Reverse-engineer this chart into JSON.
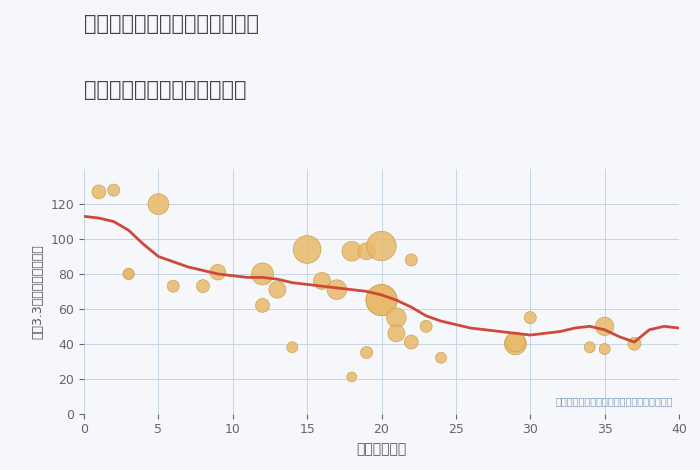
{
  "title_line1": "愛知県名古屋市中川区玉船町の",
  "title_line2": "築年数別中古マンション価格",
  "xlabel": "築年数（年）",
  "ylabel": "坪（3.3㎡）単価（万円）",
  "note": "円の大きさは、取引のあった物件面積を示す",
  "fig_bg_color": "#f5f7fa",
  "plot_bg_color": "#f5f7fa",
  "line_color": "#cd4a3a",
  "scatter_color": "#e8b96a",
  "scatter_edge_color": "#c89a40",
  "xlim": [
    0,
    40
  ],
  "ylim": [
    0,
    140
  ],
  "xticks": [
    0,
    5,
    10,
    15,
    20,
    25,
    30,
    35,
    40
  ],
  "yticks": [
    0,
    20,
    40,
    60,
    80,
    100,
    120
  ],
  "line_x": [
    0,
    1,
    2,
    3,
    4,
    5,
    6,
    7,
    8,
    9,
    10,
    11,
    12,
    13,
    14,
    15,
    16,
    17,
    18,
    19,
    20,
    21,
    22,
    23,
    24,
    25,
    26,
    27,
    28,
    29,
    30,
    31,
    32,
    33,
    34,
    35,
    36,
    37,
    38,
    39,
    40
  ],
  "line_y": [
    113,
    112,
    110,
    105,
    97,
    90,
    87,
    84,
    82,
    80,
    79,
    78,
    78,
    77,
    75,
    74,
    73,
    72,
    71,
    70,
    68,
    65,
    61,
    56,
    53,
    51,
    49,
    48,
    47,
    46,
    45,
    46,
    47,
    49,
    50,
    48,
    44,
    41,
    48,
    50,
    49
  ],
  "scatter_x": [
    1,
    2,
    3,
    3,
    5,
    6,
    8,
    9,
    12,
    12,
    13,
    14,
    15,
    16,
    17,
    18,
    18,
    19,
    19,
    20,
    20,
    20,
    21,
    21,
    22,
    22,
    23,
    24,
    29,
    29,
    30,
    34,
    35,
    35,
    37
  ],
  "scatter_y": [
    127,
    128,
    80,
    80,
    120,
    73,
    73,
    81,
    80,
    62,
    71,
    38,
    94,
    76,
    71,
    93,
    21,
    93,
    35,
    96,
    65,
    65,
    55,
    46,
    88,
    41,
    50,
    32,
    40,
    41,
    55,
    38,
    50,
    37,
    40
  ],
  "scatter_sizes": [
    40,
    30,
    25,
    25,
    90,
    30,
    35,
    50,
    100,
    40,
    60,
    25,
    160,
    60,
    80,
    80,
    20,
    60,
    30,
    180,
    200,
    200,
    80,
    60,
    30,
    40,
    30,
    25,
    100,
    80,
    30,
    25,
    70,
    25,
    35
  ]
}
